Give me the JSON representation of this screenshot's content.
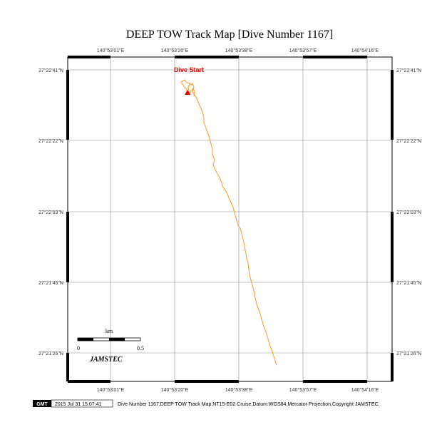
{
  "title": "DEEP TOW Track Map [Dive Number 1167]",
  "lon_ticks": [
    "140°53'01\"E",
    "140°53'20\"E",
    "140°53'38\"E",
    "140°53'57\"E",
    "140°54'16\"E"
  ],
  "lat_ticks": [
    "27°22'41\"N",
    "27°22'22\"N",
    "27°22'03\"N",
    "27°21'45\"N",
    "27°21'26\"N"
  ],
  "dive_start_label": "Dive Start",
  "scale": {
    "unit": "km",
    "start": "0",
    "end": "0.5"
  },
  "logo_text": "JAMSTEC",
  "footer": {
    "gmt_badge": "GMT",
    "timestamp": "2015 Jul 31 15:07:41",
    "caption": "Dive Number 1167,DEEP TOW Track Map,NT15-E02 Cruise,Datum:WGS84,Mercator Projection,Copyright JAMSTEC."
  },
  "colors": {
    "track": "#f5a030",
    "start_marker": "#e00000"
  },
  "track": {
    "start": {
      "lon": "140°53'19\"E",
      "lat": "27°22'38\"N"
    }
  }
}
